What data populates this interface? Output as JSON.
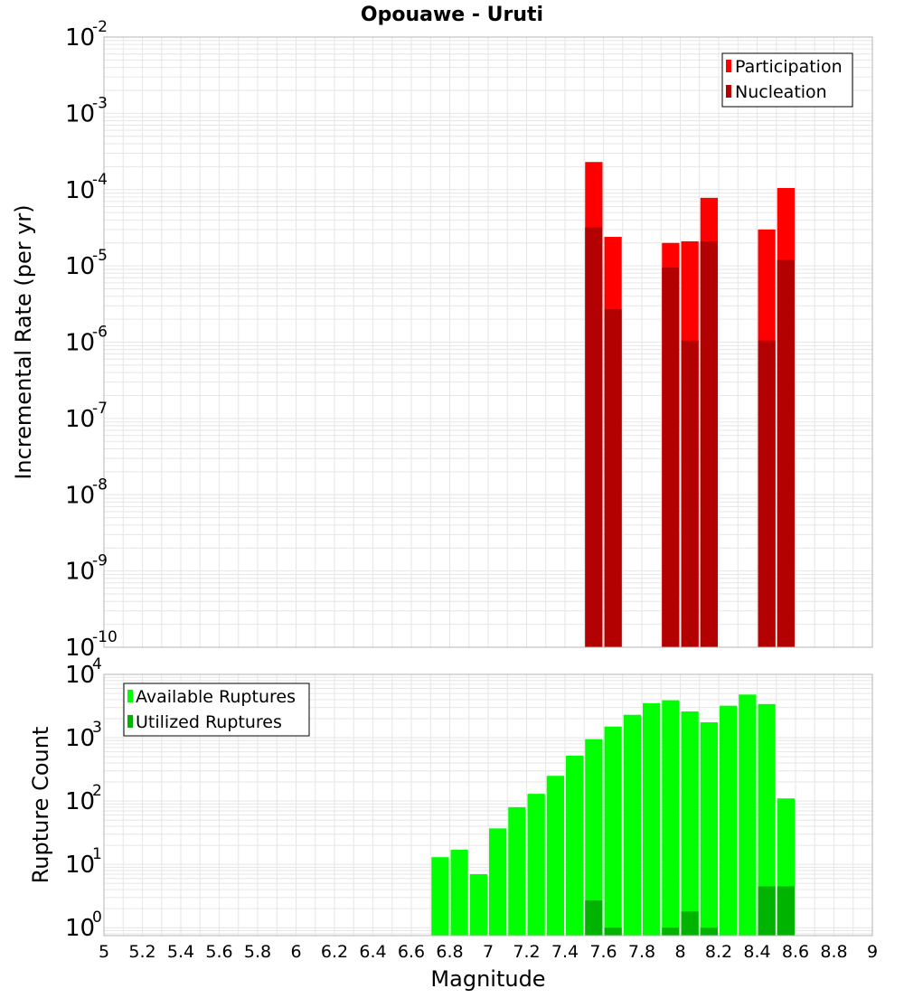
{
  "title": "Opouawe - Uruti",
  "colors": {
    "participation": "#ff0000",
    "nucleation": "#b30000",
    "available": "#00ff00",
    "utilized": "#00b300",
    "grid": "#e6e6e6",
    "frame": "#b4b4b4"
  },
  "chart_data": [
    {
      "type": "bar",
      "title": "Opouawe - Uruti",
      "xlabel": "",
      "ylabel": "Incremental Rate (per yr)",
      "xlim": [
        5,
        9
      ],
      "ylim": [
        1e-10,
        0.01
      ],
      "log_y": true,
      "grid": true,
      "legend_position": "top-right",
      "bar_width": 0.1,
      "yticks": [
        {
          "base": "10",
          "exp": "-2",
          "value": 0.01
        },
        {
          "base": "10",
          "exp": "-3",
          "value": 0.001
        },
        {
          "base": "10",
          "exp": "-4",
          "value": 0.0001
        },
        {
          "base": "10",
          "exp": "-5",
          "value": 1e-05
        },
        {
          "base": "10",
          "exp": "-6",
          "value": 1e-06
        },
        {
          "base": "10",
          "exp": "-7",
          "value": 1e-07
        },
        {
          "base": "10",
          "exp": "-8",
          "value": 1e-08
        },
        {
          "base": "10",
          "exp": "-9",
          "value": 1e-09
        },
        {
          "base": "10",
          "exp": "-10",
          "value": 1e-10
        }
      ],
      "series": [
        {
          "name": "Participation",
          "points": [
            {
              "x": 7.55,
              "y": 0.00023
            },
            {
              "x": 7.65,
              "y": 2.4e-05
            },
            {
              "x": 7.95,
              "y": 2e-05
            },
            {
              "x": 8.05,
              "y": 2.1e-05
            },
            {
              "x": 8.15,
              "y": 7.8e-05
            },
            {
              "x": 8.45,
              "y": 3e-05
            },
            {
              "x": 8.55,
              "y": 0.000105
            }
          ]
        },
        {
          "name": "Nucleation",
          "points": [
            {
              "x": 7.55,
              "y": 3.2e-05
            },
            {
              "x": 7.65,
              "y": 2.7e-06
            },
            {
              "x": 7.95,
              "y": 9.5e-06
            },
            {
              "x": 8.05,
              "y": 1.05e-06
            },
            {
              "x": 8.15,
              "y": 2.1e-05
            },
            {
              "x": 8.45,
              "y": 1.05e-06
            },
            {
              "x": 8.55,
              "y": 1.2e-05
            }
          ]
        }
      ]
    },
    {
      "type": "bar",
      "title": "",
      "xlabel": "Magnitude",
      "ylabel": "Rupture Count",
      "xlim": [
        5,
        9
      ],
      "ylim": [
        0.75,
        10000
      ],
      "log_y": true,
      "grid": true,
      "legend_position": "top-left",
      "bar_width": 0.1,
      "xticks": [
        "5",
        "5.2",
        "5.4",
        "5.6",
        "5.8",
        "6",
        "6.2",
        "6.4",
        "6.6",
        "6.8",
        "7",
        "7.2",
        "7.4",
        "7.6",
        "7.8",
        "8",
        "8.2",
        "8.4",
        "8.6",
        "8.8",
        "9"
      ],
      "yticks": [
        {
          "base": "10",
          "exp": "4",
          "value": 10000
        },
        {
          "base": "10",
          "exp": "3",
          "value": 1000
        },
        {
          "base": "10",
          "exp": "2",
          "value": 100
        },
        {
          "base": "10",
          "exp": "1",
          "value": 10
        },
        {
          "base": "10",
          "exp": "0",
          "value": 1
        }
      ],
      "series": [
        {
          "name": "Available Ruptures",
          "points": [
            {
              "x": 6.75,
              "y": 13
            },
            {
              "x": 6.85,
              "y": 17
            },
            {
              "x": 6.95,
              "y": 7
            },
            {
              "x": 7.05,
              "y": 37
            },
            {
              "x": 7.15,
              "y": 80
            },
            {
              "x": 7.25,
              "y": 130
            },
            {
              "x": 7.35,
              "y": 250
            },
            {
              "x": 7.45,
              "y": 520
            },
            {
              "x": 7.55,
              "y": 950
            },
            {
              "x": 7.65,
              "y": 1500
            },
            {
              "x": 7.75,
              "y": 2300
            },
            {
              "x": 7.85,
              "y": 3500
            },
            {
              "x": 7.95,
              "y": 3900
            },
            {
              "x": 8.05,
              "y": 2600
            },
            {
              "x": 8.15,
              "y": 1750
            },
            {
              "x": 8.25,
              "y": 3200
            },
            {
              "x": 8.35,
              "y": 4800
            },
            {
              "x": 8.45,
              "y": 3400
            },
            {
              "x": 8.55,
              "y": 110
            }
          ]
        },
        {
          "name": "Utilized Ruptures",
          "points": [
            {
              "x": 7.55,
              "y": 2.7
            },
            {
              "x": 7.65,
              "y": 1
            },
            {
              "x": 7.95,
              "y": 1
            },
            {
              "x": 8.05,
              "y": 1.8
            },
            {
              "x": 8.15,
              "y": 1
            },
            {
              "x": 8.45,
              "y": 4.5
            },
            {
              "x": 8.55,
              "y": 4.5
            }
          ]
        }
      ]
    }
  ]
}
